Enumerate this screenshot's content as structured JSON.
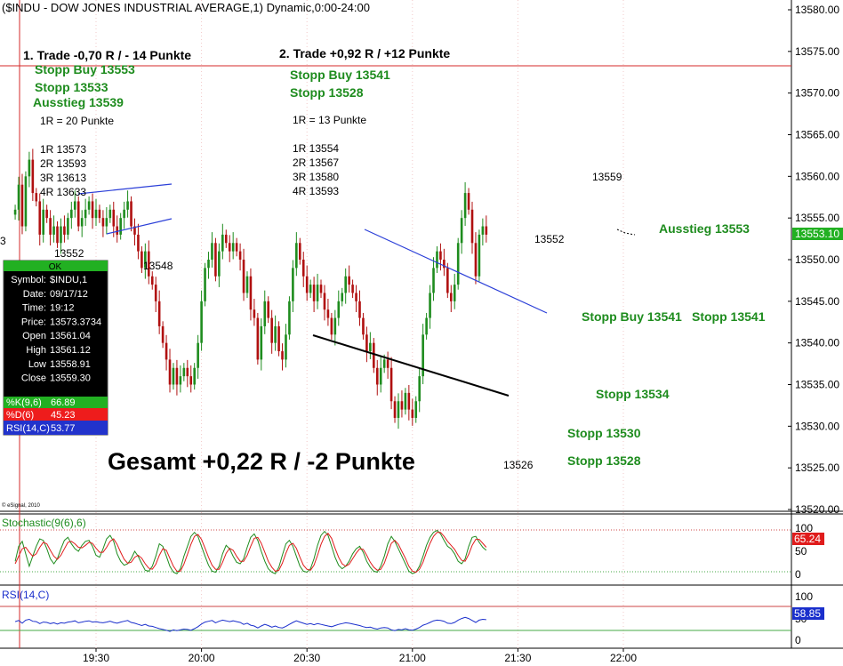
{
  "header": {
    "title": "($INDU - DOW JONES INDUSTRIAL AVERAGE,1) Dynamic,0:00-24:00"
  },
  "trades": {
    "trade1": {
      "title": "1. Trade -0,70 R / - 14 Punkte",
      "stopp_buy": "Stopp Buy 13553",
      "stopp": "Stopp 13533",
      "ausstieg": "Ausstieg 13539",
      "r_def": "1R = 20 Punkte",
      "targets": [
        "1R 13573",
        "2R 13593",
        "3R 13613",
        "4R 13633"
      ]
    },
    "trade2": {
      "title": "2. Trade +0,92 R / +12 Punkte",
      "stopp_buy": "Stopp Buy 13541",
      "stopp": "Stopp 13528",
      "r_def": "1R = 13 Punkte",
      "targets": [
        "1R 13554",
        "2R 13567",
        "3R 13580",
        "4R 13593"
      ]
    }
  },
  "annotations": {
    "label_13552_left": "13552",
    "label_13548": "13548",
    "label_13552_right": "13552",
    "label_13559": "13559",
    "label_13526": "13526",
    "ausstieg_right": "Ausstieg 13553",
    "stopp_buy_right": "Stopp Buy 13541",
    "stopp_right": "Stopp 13541",
    "stopp_13534": "Stopp 13534",
    "stopp_13530": "Stopp 13530",
    "stopp_13528": "Stopp 13528",
    "gesamt": "Gesamt +0,22 R / -2 Punkte",
    "edge_3": "3",
    "esignal": "© eSignal, 2010"
  },
  "info_box": {
    "ok": "OK",
    "rows": [
      {
        "label": "Symbol:",
        "value": "$INDU,1"
      },
      {
        "label": "Date:",
        "value": "09/17/12"
      },
      {
        "label": "Time:",
        "value": "19:12"
      },
      {
        "label": "Price:",
        "value": "13573.3734"
      },
      {
        "label": "Open",
        "value": "13561.04"
      },
      {
        "label": "High",
        "value": "13561.12"
      },
      {
        "label": "Low",
        "value": "13558.91"
      },
      {
        "label": "Close",
        "value": "13559.30"
      }
    ],
    "k_label": "%K(9,6)",
    "k_value": "66.89",
    "d_label": "%D(6)",
    "d_value": "45.23",
    "rsi_label": "RSI(14,C)",
    "rsi_value": "53.77",
    "colors": {
      "ok": "#22b022",
      "k": "#22b022",
      "d": "#ee1c1c",
      "rsi": "#2233cc",
      "box": "#000000"
    }
  },
  "indicators": {
    "stoch_title": "Stochastic(9(6),6)",
    "stoch_value": "65.24",
    "stoch_ticks": [
      "100",
      "50",
      "0"
    ],
    "rsi_title": "RSI(14,C)",
    "rsi_value": "58.85",
    "rsi_ticks": [
      "100",
      "50",
      "0"
    ]
  },
  "price_axis": {
    "ticks": [
      "13580.00",
      "13575.00",
      "13570.00",
      "13565.00",
      "13560.00",
      "13555.00",
      "13550.00",
      "13545.00",
      "13540.00",
      "13535.00",
      "13530.00",
      "13525.00",
      "13520.00"
    ],
    "current": "13553.10"
  },
  "time_axis": {
    "ticks": [
      "19:30",
      "20:00",
      "20:30",
      "21:00",
      "21:30",
      "22:00"
    ]
  },
  "colors": {
    "up": "#1e8c1e",
    "down": "#b01010",
    "grid": "#f2c8c8",
    "stoch_k": "#1e8c1e",
    "stoch_d": "#e01c1c",
    "rsi_line": "#1a2fcc",
    "trend_blue": "#2b3fd8",
    "trend_black": "#000000"
  },
  "chart_data": {
    "type": "candlestick",
    "title": "($INDU - DOW JONES INDUSTRIAL AVERAGE,1) Dynamic,0:00-24:00",
    "ylim": [
      13519,
      13581
    ],
    "x_ticks": [
      "19:30",
      "20:00",
      "20:30",
      "21:00",
      "21:30",
      "22:00"
    ],
    "start_time": "19:07",
    "close": [
      13556,
      13559,
      13554,
      13560,
      13562,
      13558,
      13557,
      13553,
      13556,
      13555,
      13553,
      13554,
      13552,
      13554,
      13553,
      13555,
      13556,
      13557,
      13554,
      13555,
      13556,
      13557,
      13555,
      13556,
      13555,
      13554,
      13555,
      13556,
      13554,
      13553,
      13555,
      13556,
      13557,
      13554,
      13553,
      13551,
      13549,
      13551,
      13548,
      13547,
      13545,
      13542,
      13540,
      13538,
      13535,
      13537,
      13535,
      13536,
      13537,
      13536,
      13535,
      13537,
      13540,
      13545,
      13549,
      13550,
      13552,
      13548,
      13551,
      13553,
      13552,
      13551,
      13552,
      13551,
      13550,
      13546,
      13548,
      13544,
      13543,
      13538,
      13542,
      13545,
      13543,
      13540,
      13542,
      13539,
      13538,
      13541,
      13545,
      13549,
      13552,
      13550,
      13548,
      13546,
      13547,
      13545,
      13547,
      13546,
      13544,
      13543,
      13541,
      13543,
      13545,
      13546,
      13548,
      13547,
      13546,
      13545,
      13543,
      13541,
      13539,
      13540,
      13537,
      13535,
      13537,
      13538,
      13537,
      13533,
      13531,
      13533,
      13532,
      13534,
      13532,
      13531,
      13533,
      13536,
      13541,
      13543,
      13546,
      13549,
      13551,
      13550,
      13549,
      13546,
      13545,
      13547,
      13552,
      13555,
      13558,
      13556,
      13552,
      13548,
      13553,
      13554,
      13553
    ],
    "series": [
      {
        "name": "%K(9,6)",
        "values": [
          30,
          60,
          70,
          45,
          20,
          40,
          60,
          75,
          72,
          55,
          35,
          25,
          35,
          55,
          72,
          78,
          65,
          55,
          50,
          62,
          70,
          72,
          60,
          42,
          38,
          55,
          75,
          82,
          70,
          45,
          30,
          22,
          25,
          35,
          50,
          40,
          25,
          12,
          10,
          20,
          40,
          65,
          60,
          40,
          20,
          8,
          5,
          15,
          40,
          60,
          80,
          88,
          80,
          60,
          40,
          22,
          10,
          8,
          20,
          45,
          62,
          55,
          40,
          28,
          25,
          35,
          58,
          78,
          85,
          72,
          50,
          30,
          15,
          8,
          5,
          18,
          42,
          65,
          72,
          60,
          40,
          20,
          10,
          8,
          15,
          35,
          62,
          82,
          90,
          82,
          60,
          38,
          22,
          15,
          20,
          30,
          45,
          55,
          60,
          48,
          30,
          18,
          10,
          8,
          20,
          40,
          65,
          80,
          70,
          55,
          40,
          25,
          10,
          5,
          8,
          20,
          40,
          62,
          78,
          88,
          92,
          85,
          72,
          60,
          55,
          45,
          30,
          25,
          35,
          60,
          78,
          80,
          68,
          58,
          52
        ]
      },
      {
        "name": "%D(6)",
        "values": [
          25,
          40,
          55,
          58,
          48,
          40,
          45,
          58,
          68,
          65,
          52,
          40,
          34,
          42,
          55,
          68,
          70,
          65,
          58,
          57,
          62,
          68,
          66,
          56,
          48,
          48,
          58,
          70,
          75,
          64,
          48,
          34,
          26,
          28,
          38,
          42,
          36,
          25,
          16,
          14,
          24,
          42,
          55,
          52,
          36,
          20,
          10,
          10,
          24,
          44,
          64,
          80,
          84,
          74,
          56,
          38,
          22,
          14,
          14,
          28,
          46,
          56,
          52,
          40,
          30,
          30,
          42,
          60,
          76,
          78,
          66,
          48,
          30,
          18,
          10,
          12,
          26,
          46,
          62,
          66,
          56,
          38,
          22,
          14,
          12,
          22,
          42,
          64,
          80,
          86,
          76,
          56,
          38,
          25,
          20,
          24,
          35,
          46,
          55,
          54,
          42,
          28,
          18,
          12,
          14,
          26,
          46,
          66,
          72,
          64,
          50,
          36,
          20,
          10,
          8,
          14,
          28,
          48,
          66,
          80,
          88,
          88,
          80,
          70,
          62,
          54,
          42,
          32,
          30,
          44,
          62,
          74,
          74,
          66,
          58
        ]
      },
      {
        "name": "RSI(14,C)",
        "values": [
          52,
          55,
          48,
          56,
          58,
          53,
          52,
          47,
          51,
          50,
          47,
          49,
          46,
          49,
          48,
          51,
          52,
          54,
          49,
          51,
          53,
          54,
          51,
          52,
          50,
          49,
          51,
          53,
          50,
          48,
          51,
          53,
          55,
          50,
          48,
          45,
          42,
          45,
          41,
          40,
          37,
          34,
          32,
          30,
          27,
          31,
          29,
          31,
          33,
          32,
          30,
          34,
          39,
          46,
          51,
          53,
          55,
          49,
          53,
          56,
          54,
          52,
          54,
          52,
          50,
          45,
          48,
          43,
          41,
          36,
          41,
          45,
          42,
          38,
          41,
          37,
          36,
          40,
          45,
          50,
          54,
          51,
          48,
          45,
          47,
          44,
          47,
          45,
          43,
          41,
          39,
          42,
          45,
          47,
          49,
          48,
          46,
          44,
          42,
          39,
          37,
          38,
          35,
          33,
          36,
          37,
          36,
          31,
          29,
          32,
          31,
          34,
          31,
          30,
          33,
          37,
          43,
          46,
          50,
          54,
          56,
          55,
          53,
          48,
          47,
          50,
          56,
          60,
          63,
          60,
          55,
          50,
          56,
          58,
          57
        ]
      }
    ]
  }
}
